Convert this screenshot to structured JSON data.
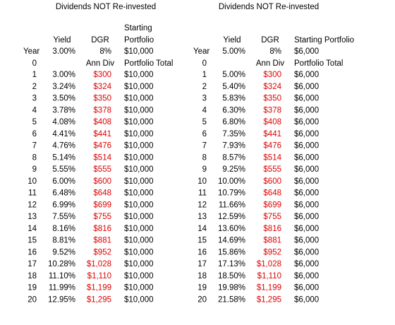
{
  "tables": [
    {
      "title": "Dividends NOT Re-invested",
      "header": [
        [
          null,
          null,
          null,
          "Starting"
        ],
        [
          null,
          "Yield",
          "DGR",
          "Portfolio"
        ],
        [
          "Year",
          "3.00%",
          "8%",
          "$10,000"
        ],
        [
          "0",
          null,
          "Ann Div",
          "Portfolio Total"
        ]
      ],
      "rows": [
        [
          "1",
          "3.00%",
          "$300",
          "$10,000"
        ],
        [
          "2",
          "3.24%",
          "$324",
          "$10,000"
        ],
        [
          "3",
          "3.50%",
          "$350",
          "$10,000"
        ],
        [
          "4",
          "3.78%",
          "$378",
          "$10,000"
        ],
        [
          "5",
          "4.08%",
          "$408",
          "$10,000"
        ],
        [
          "6",
          "4.41%",
          "$441",
          "$10,000"
        ],
        [
          "7",
          "4.76%",
          "$476",
          "$10,000"
        ],
        [
          "8",
          "5.14%",
          "$514",
          "$10,000"
        ],
        [
          "9",
          "5.55%",
          "$555",
          "$10,000"
        ],
        [
          "10",
          "6.00%",
          "$600",
          "$10,000"
        ],
        [
          "11",
          "6.48%",
          "$648",
          "$10,000"
        ],
        [
          "12",
          "6.99%",
          "$699",
          "$10,000"
        ],
        [
          "13",
          "7.55%",
          "$755",
          "$10,000"
        ],
        [
          "14",
          "8.16%",
          "$816",
          "$10,000"
        ],
        [
          "15",
          "8.81%",
          "$881",
          "$10,000"
        ],
        [
          "16",
          "9.52%",
          "$952",
          "$10,000"
        ],
        [
          "17",
          "10.28%",
          "$1,028",
          "$10,000"
        ],
        [
          "18",
          "11.10%",
          "$1,110",
          "$10,000"
        ],
        [
          "19",
          "11.99%",
          "$1,199",
          "$10,000"
        ],
        [
          "20",
          "12.95%",
          "$1,295",
          "$10,000"
        ]
      ]
    },
    {
      "title": "Dividends NOT Re-invested",
      "header": [
        [
          null,
          null,
          null,
          null
        ],
        [
          null,
          "Yield",
          "DGR",
          "Starting Portfolio"
        ],
        [
          "Year",
          "5.00%",
          "8%",
          "$6,000"
        ],
        [
          "0",
          null,
          "Ann Div",
          "Portfolio Total"
        ]
      ],
      "rows": [
        [
          "1",
          "5.00%",
          "$300",
          "$6,000"
        ],
        [
          "2",
          "5.40%",
          "$324",
          "$6,000"
        ],
        [
          "3",
          "5.83%",
          "$350",
          "$6,000"
        ],
        [
          "4",
          "6.30%",
          "$378",
          "$6,000"
        ],
        [
          "5",
          "6.80%",
          "$408",
          "$6,000"
        ],
        [
          "6",
          "7.35%",
          "$441",
          "$6,000"
        ],
        [
          "7",
          "7.93%",
          "$476",
          "$6,000"
        ],
        [
          "8",
          "8.57%",
          "$514",
          "$6,000"
        ],
        [
          "9",
          "9.25%",
          "$555",
          "$6,000"
        ],
        [
          "10",
          "10.00%",
          "$600",
          "$6,000"
        ],
        [
          "11",
          "10.79%",
          "$648",
          "$6,000"
        ],
        [
          "12",
          "11.66%",
          "$699",
          "$6,000"
        ],
        [
          "13",
          "12.59%",
          "$755",
          "$6,000"
        ],
        [
          "14",
          "13.60%",
          "$816",
          "$6,000"
        ],
        [
          "15",
          "14.69%",
          "$881",
          "$6,000"
        ],
        [
          "16",
          "15.86%",
          "$952",
          "$6,000"
        ],
        [
          "17",
          "17.13%",
          "$1,028",
          "$6,000"
        ],
        [
          "18",
          "18.50%",
          "$1,110",
          "$6,000"
        ],
        [
          "19",
          "19.98%",
          "$1,199",
          "$6,000"
        ],
        [
          "20",
          "21.58%",
          "$1,295",
          "$6,000"
        ]
      ]
    }
  ]
}
